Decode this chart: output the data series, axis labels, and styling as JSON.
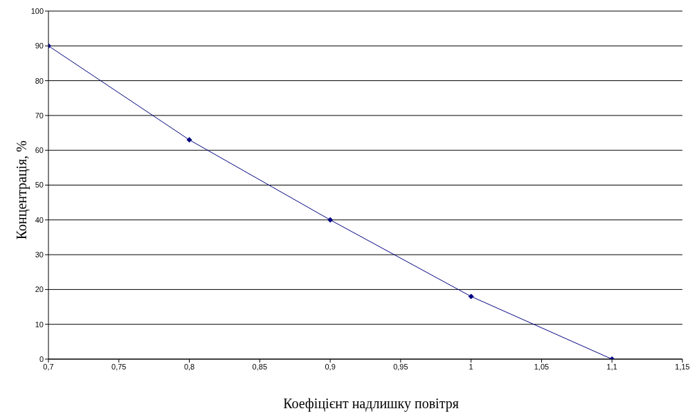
{
  "chart_data": {
    "type": "line",
    "xlabel": "Коефіцієнт надлишку повітря",
    "ylabel": "Концентрація, %",
    "x": [
      0.7,
      0.8,
      0.9,
      1,
      1.1
    ],
    "series": [
      {
        "color": "#000080",
        "values": [
          90,
          63,
          40,
          18,
          0
        ]
      }
    ],
    "xlim": [
      0.7,
      1.15
    ],
    "xticks": [
      {
        "value": 0.7,
        "label": "0,7"
      },
      {
        "value": 0.75,
        "label": "0,75"
      },
      {
        "value": 0.8,
        "label": "0,8"
      },
      {
        "value": 0.85,
        "label": "0,85"
      },
      {
        "value": 0.9,
        "label": "0,9"
      },
      {
        "value": 0.95,
        "label": "0,95"
      },
      {
        "value": 1,
        "label": "1"
      },
      {
        "value": 1.05,
        "label": "1,05"
      },
      {
        "value": 1.1,
        "label": "1,1"
      },
      {
        "value": 1.15,
        "label": "1,15"
      }
    ],
    "ylim": [
      0,
      100
    ],
    "yticks": [
      0,
      10,
      20,
      30,
      40,
      50,
      60,
      70,
      80,
      90,
      100
    ],
    "grid": "y",
    "marker": "diamond",
    "line_style": "solid",
    "legend": false
  }
}
